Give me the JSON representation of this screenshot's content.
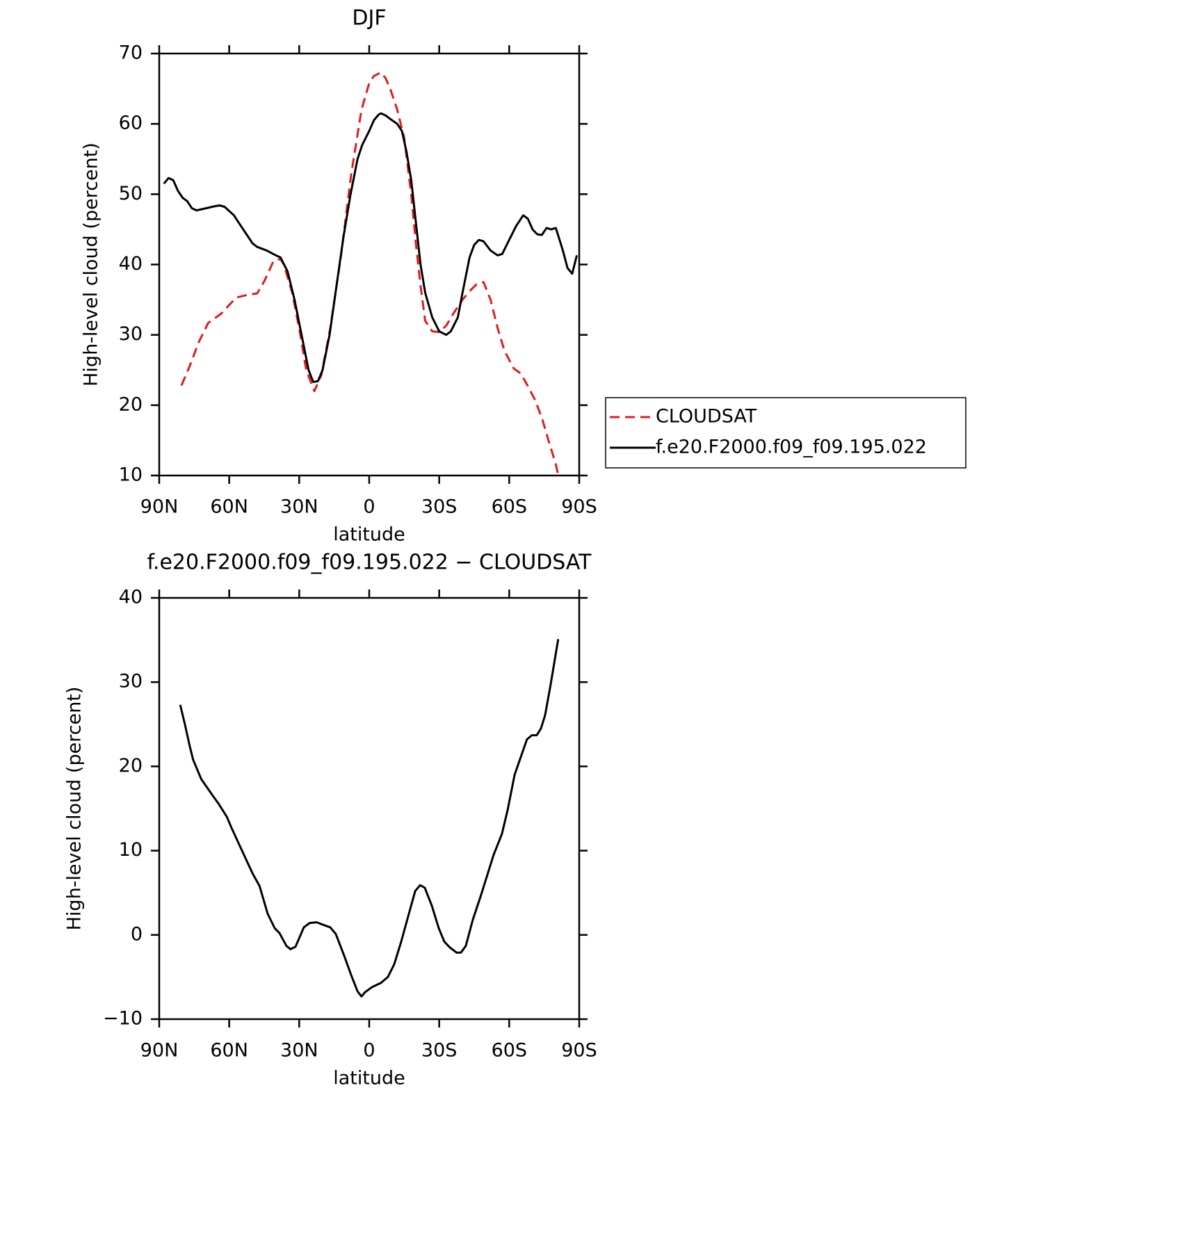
{
  "chart_data": [
    {
      "type": "line",
      "title": "DJF",
      "x_label": "latitude",
      "y_label": "High-level cloud (percent)",
      "xlim": [
        90,
        -90
      ],
      "xticks": [
        {
          "value": 90,
          "label": "90N"
        },
        {
          "value": 60,
          "label": "60N"
        },
        {
          "value": 30,
          "label": "30N"
        },
        0,
        {
          "value": -30,
          "label": "30S"
        },
        {
          "value": -60,
          "label": "60S"
        },
        {
          "value": -90,
          "label": "90S"
        }
      ],
      "ylim": [
        10,
        70
      ],
      "yticks": [
        10,
        20,
        30,
        40,
        50,
        60,
        70
      ],
      "legend": "right",
      "series": [
        {
          "name": "CLOUDSAT",
          "color": "#e31a1c",
          "linestyle": "dashed",
          "x": [
            80.5,
            77,
            73,
            69,
            63.5,
            57,
            52,
            48,
            45,
            41,
            38,
            36.6,
            33,
            29.5,
            27,
            23.5,
            20.5,
            16.7,
            12.2,
            7.7,
            3.3,
            0,
            -2,
            -5,
            -7,
            -9,
            -12,
            -15,
            -18,
            -20,
            -22,
            -24,
            -27,
            -30,
            -33,
            -36,
            -40,
            -43,
            -46,
            -49,
            -52,
            -55,
            -58,
            -62,
            -65,
            -68,
            -71,
            -74,
            -77,
            -80,
            -81
          ],
          "values": [
            22.8,
            25.5,
            29,
            31.7,
            33,
            35.3,
            35.7,
            35.9,
            37.6,
            40.5,
            40.8,
            40,
            36,
            30,
            25,
            22,
            24.3,
            31,
            41,
            52.9,
            62,
            65.8,
            66.8,
            67.3,
            66.5,
            65,
            62,
            58,
            50,
            43,
            37,
            32,
            30.5,
            30.4,
            31.3,
            33,
            35,
            36.2,
            37.2,
            37.5,
            35,
            31,
            27.7,
            25.2,
            24.5,
            22.7,
            20.8,
            18.2,
            14.8,
            11.6,
            10
          ]
        },
        {
          "name": "f.e20.F2000.f09_f09.195.022",
          "color": "#000000",
          "linestyle": "solid",
          "x": [
            88,
            86,
            84,
            82,
            80,
            78,
            76,
            74,
            70,
            66,
            64,
            62,
            58,
            55,
            52,
            50,
            48,
            44,
            40,
            38,
            35,
            32,
            29,
            26,
            24,
            22,
            20,
            17,
            14,
            11,
            8,
            5,
            3,
            0,
            -2,
            -4,
            -5,
            -7,
            -9,
            -12,
            -14,
            -16,
            -18,
            -20,
            -22,
            -24,
            -27,
            -30,
            -33,
            -35,
            -38,
            -40,
            -43,
            -45,
            -47,
            -49,
            -52,
            -55,
            -57,
            -60,
            -63,
            -66,
            -68,
            -70,
            -72,
            -74,
            -76,
            -78,
            -80,
            -83,
            -85,
            -87,
            -89
          ],
          "values": [
            51.5,
            52.3,
            52,
            50.5,
            49.5,
            49,
            48,
            47.7,
            48,
            48.3,
            48.4,
            48.2,
            47,
            45.5,
            44,
            43,
            42.5,
            42,
            41.3,
            41,
            39,
            35,
            30,
            25,
            23.3,
            23.4,
            25,
            30,
            37,
            44,
            50,
            55,
            57,
            59,
            60.5,
            61.3,
            61.5,
            61.2,
            60.7,
            60,
            59,
            56,
            52,
            46,
            40,
            36,
            32.5,
            30.5,
            30,
            30.5,
            32.5,
            36,
            41,
            42.8,
            43.5,
            43.3,
            42,
            41.3,
            41.5,
            43.5,
            45.5,
            47,
            46.5,
            45,
            44.3,
            44.2,
            45.2,
            45,
            45.2,
            42,
            39.5,
            38.7,
            41.3
          ]
        }
      ]
    },
    {
      "type": "line",
      "title": "f.e20.F2000.f09_f09.195.022 − CLOUDSAT",
      "x_label": "latitude",
      "y_label": "High-level cloud (percent)",
      "xlim": [
        90,
        -90
      ],
      "xticks": [
        {
          "value": 90,
          "label": "90N"
        },
        {
          "value": 60,
          "label": "60N"
        },
        {
          "value": 30,
          "label": "30N"
        },
        0,
        {
          "value": -30,
          "label": "30S"
        },
        {
          "value": -60,
          "label": "60S"
        },
        {
          "value": -90,
          "label": "90S"
        }
      ],
      "ylim": [
        -10,
        40
      ],
      "yticks": [
        {
          "value": -10,
          "label": "−10"
        },
        0,
        10,
        20,
        30,
        40
      ],
      "color": "#000000",
      "x": [
        81,
        79,
        77,
        75.5,
        72,
        67,
        64.4,
        61,
        59,
        55,
        50,
        47,
        43.5,
        40.5,
        38.4,
        35.5,
        33.7,
        31.6,
        28,
        25.6,
        22.6,
        19.7,
        16.7,
        14.3,
        10.7,
        7.7,
        5,
        3.3,
        1.8,
        -1.2,
        -5,
        -8,
        -10.7,
        -13.7,
        -17,
        -19.7,
        -21.8,
        -23.8,
        -26.8,
        -29.8,
        -32.2,
        -34.6,
        -37.5,
        -39.3,
        -41.4,
        -44.4,
        -48,
        -53.3,
        -56.9,
        -59.3,
        -62.3,
        -67.6,
        -69.7,
        -71.8,
        -73.6,
        -75.4,
        -77.8,
        -81
      ],
      "values": [
        27.3,
        25,
        22.5,
        20.8,
        18.5,
        16.5,
        15.5,
        14,
        12.7,
        10.3,
        7.3,
        5.8,
        2.5,
        0.8,
        0.2,
        -1.3,
        -1.7,
        -1.4,
        0.9,
        1.4,
        1.5,
        1.2,
        0.9,
        0.1,
        -2.5,
        -4.8,
        -6.7,
        -7.3,
        -6.8,
        -6.2,
        -5.7,
        -5,
        -3.5,
        -0.8,
        2.5,
        5.2,
        5.9,
        5.6,
        3.5,
        0.8,
        -0.8,
        -1.5,
        -2.1,
        -2.1,
        -1.3,
        1.8,
        4.8,
        9.5,
        12,
        14.8,
        19,
        23.2,
        23.7,
        23.7,
        24.5,
        26.1,
        29.8,
        35.1
      ]
    }
  ]
}
